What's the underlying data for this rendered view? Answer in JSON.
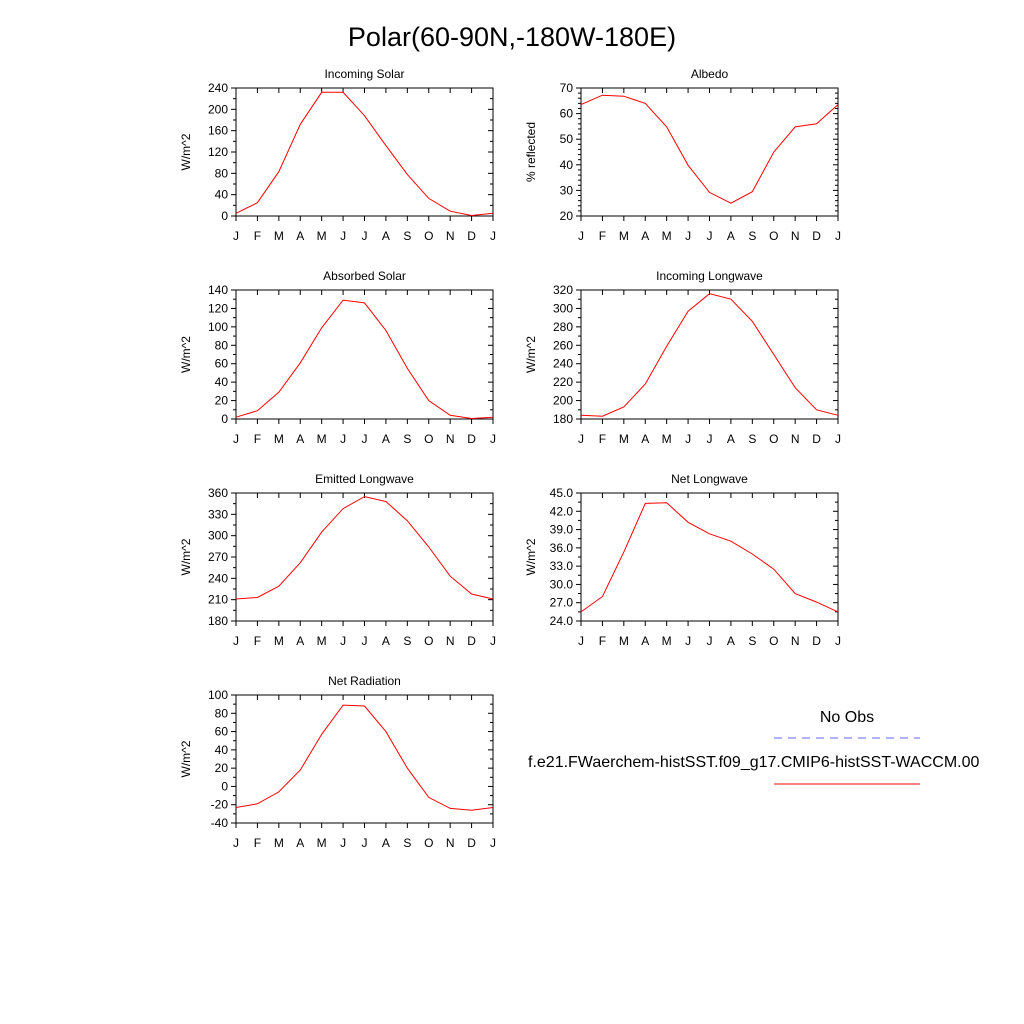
{
  "main_title": "Polar(60-90N,-180W-180E)",
  "legend": {
    "entries": [
      {
        "label": "No Obs",
        "color": "#6666ff",
        "dash": true
      },
      {
        "label": "f.e21.FWaerchem-histSST.f09_g17.CMIP6-histSST-WACCM.00",
        "color": "#ff0000",
        "dash": false
      }
    ]
  },
  "colors": {
    "model": "#ff0000",
    "obs": "#6666ff"
  },
  "chart_data": [
    {
      "type": "line",
      "title": "Incoming Solar",
      "xlabel": "",
      "ylabel": "W/m^2",
      "categories": [
        "J",
        "F",
        "M",
        "A",
        "M",
        "J",
        "J",
        "A",
        "S",
        "O",
        "N",
        "D",
        "J"
      ],
      "ylim": [
        0,
        240
      ],
      "yticks": [
        0,
        40,
        80,
        120,
        160,
        200,
        240
      ],
      "yminor": 20,
      "ytick_labels": [
        "0",
        "40",
        "80",
        "120",
        "160",
        "200",
        "240"
      ],
      "values": [
        5,
        25,
        83,
        172,
        232,
        232,
        188,
        132,
        78,
        33,
        9,
        1,
        5
      ]
    },
    {
      "type": "line",
      "title": "Albedo",
      "xlabel": "",
      "ylabel": "% reflected",
      "categories": [
        "J",
        "F",
        "M",
        "A",
        "M",
        "J",
        "J",
        "A",
        "S",
        "O",
        "N",
        "D",
        "J"
      ],
      "ylim": [
        20,
        70
      ],
      "yticks": [
        20,
        30,
        40,
        50,
        60,
        70
      ],
      "yminor": 2,
      "ytick_labels": [
        "20",
        "30",
        "40",
        "50",
        "60",
        "70"
      ],
      "values": [
        63.5,
        67.2,
        66.8,
        64.0,
        54.8,
        39.8,
        29.2,
        25.0,
        29.5,
        45.0,
        54.8,
        56.0,
        63.5
      ]
    },
    {
      "type": "line",
      "title": "Absorbed Solar",
      "xlabel": "",
      "ylabel": "W/m^2",
      "categories": [
        "J",
        "F",
        "M",
        "A",
        "M",
        "J",
        "J",
        "A",
        "S",
        "O",
        "N",
        "D",
        "J"
      ],
      "ylim": [
        0,
        140
      ],
      "yticks": [
        0,
        20,
        40,
        60,
        80,
        100,
        120,
        140
      ],
      "yminor": 10,
      "ytick_labels": [
        "0",
        "20",
        "40",
        "60",
        "80",
        "100",
        "120",
        "140"
      ],
      "values": [
        2,
        9,
        29,
        61,
        99,
        129,
        126,
        96,
        55,
        20,
        4,
        0.5,
        2
      ]
    },
    {
      "type": "line",
      "title": "Incoming Longwave",
      "xlabel": "",
      "ylabel": "W/m^2",
      "categories": [
        "J",
        "F",
        "M",
        "A",
        "M",
        "J",
        "J",
        "A",
        "S",
        "O",
        "N",
        "D",
        "J"
      ],
      "ylim": [
        180,
        320
      ],
      "yticks": [
        180,
        200,
        220,
        240,
        260,
        280,
        300,
        320
      ],
      "yminor": 10,
      "ytick_labels": [
        "180",
        "200",
        "220",
        "240",
        "260",
        "280",
        "300",
        "320"
      ],
      "values": [
        184,
        183,
        193,
        218,
        259,
        297,
        316,
        310,
        286,
        250,
        214,
        190,
        184
      ]
    },
    {
      "type": "line",
      "title": "Emitted Longwave",
      "xlabel": "",
      "ylabel": "W/m^2",
      "categories": [
        "J",
        "F",
        "M",
        "A",
        "M",
        "J",
        "J",
        "A",
        "S",
        "O",
        "N",
        "D",
        "J"
      ],
      "ylim": [
        180,
        360
      ],
      "yticks": [
        180,
        210,
        240,
        270,
        300,
        330,
        360
      ],
      "yminor": 15,
      "ytick_labels": [
        "180",
        "210",
        "240",
        "270",
        "300",
        "330",
        "360"
      ],
      "values": [
        211,
        213,
        229,
        262,
        305,
        338,
        355,
        348,
        321,
        284,
        243,
        218,
        211
      ]
    },
    {
      "type": "line",
      "title": "Net Longwave",
      "xlabel": "",
      "ylabel": "W/m^2",
      "categories": [
        "J",
        "F",
        "M",
        "A",
        "M",
        "J",
        "J",
        "A",
        "S",
        "O",
        "N",
        "D",
        "J"
      ],
      "ylim": [
        24,
        45
      ],
      "yticks": [
        24,
        27,
        30,
        33,
        36,
        39,
        42,
        45
      ],
      "yminor": 1.5,
      "ytick_labels": [
        "24.0",
        "27.0",
        "30.0",
        "33.0",
        "36.0",
        "39.0",
        "42.0",
        "45.0"
      ],
      "values": [
        25.5,
        28.0,
        35.3,
        43.3,
        43.4,
        40.2,
        38.3,
        37.1,
        35.0,
        32.5,
        28.5,
        27.1,
        25.5
      ]
    },
    {
      "type": "line",
      "title": "Net Radiation",
      "xlabel": "",
      "ylabel": "W/m^2",
      "categories": [
        "J",
        "F",
        "M",
        "A",
        "M",
        "J",
        "J",
        "A",
        "S",
        "O",
        "N",
        "D",
        "J"
      ],
      "ylim": [
        -40,
        100
      ],
      "yticks": [
        -40,
        -20,
        0,
        20,
        40,
        60,
        80,
        100
      ],
      "yminor": 10,
      "ytick_labels": [
        "-40",
        "-20",
        "0",
        "20",
        "40",
        "60",
        "80",
        "100"
      ],
      "values": [
        -23,
        -19,
        -6,
        18,
        57,
        89,
        88,
        60,
        20,
        -12,
        -24,
        -26,
        -23
      ]
    }
  ]
}
